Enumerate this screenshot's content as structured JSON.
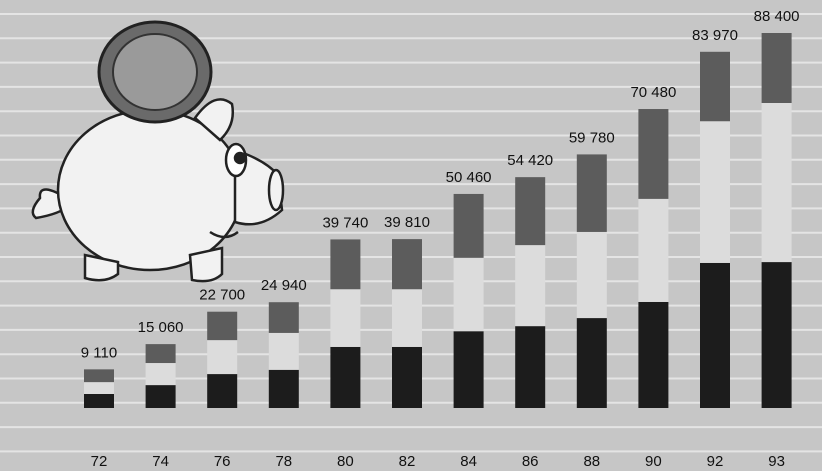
{
  "chart_data": {
    "type": "stacked-bar",
    "categories": [
      "72",
      "74",
      "76",
      "78",
      "80",
      "82",
      "84",
      "86",
      "88",
      "90",
      "92",
      "93"
    ],
    "totals": [
      9110,
      15060,
      22700,
      24940,
      39740,
      39810,
      50460,
      54420,
      59780,
      70480,
      83970,
      88400
    ],
    "value_labels": [
      "9 110",
      "15 060",
      "22 700",
      "24 940",
      "39 740",
      "39 810",
      "50 460",
      "54 420",
      "59 780",
      "70 480",
      "83 970",
      "88 400"
    ],
    "series": [
      {
        "color": "#1c1c1c",
        "values": [
          3300,
          5400,
          8000,
          9000,
          14400,
          14400,
          18100,
          19300,
          21200,
          25000,
          34200,
          34400
        ]
      },
      {
        "color": "#dcdcdc",
        "values": [
          2800,
          5200,
          8000,
          8700,
          13600,
          13600,
          17300,
          19100,
          20300,
          24300,
          33400,
          37500
        ]
      },
      {
        "color": "#5c5c5c",
        "values": [
          3010,
          4460,
          6700,
          7240,
          11740,
          11810,
          15060,
          16020,
          18280,
          21180,
          16370,
          16500
        ]
      }
    ]
  }
}
